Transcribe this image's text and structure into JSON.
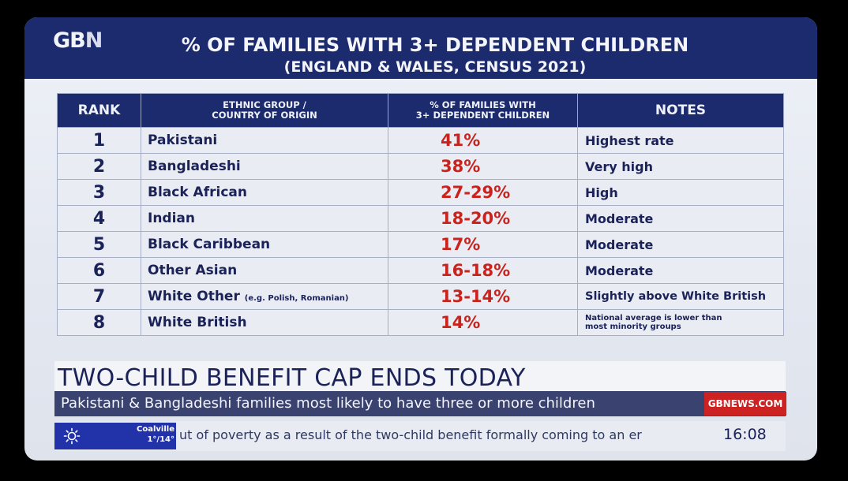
{
  "channel": {
    "logo_main": "GB",
    "logo_end": "N"
  },
  "graphic": {
    "title": "% OF FAMILIES WITH 3+ DEPENDENT CHILDREN",
    "subtitle": "(ENGLAND & WALES, CENSUS 2021)",
    "headers": {
      "rank": "RANK",
      "group_line1": "ETHNIC GROUP /",
      "group_line2": "COUNTRY OF ORIGIN",
      "pct_line1": "% OF FAMILIES WITH",
      "pct_line2": "3+ DEPENDENT CHILDREN",
      "notes": "NOTES"
    },
    "rows": [
      {
        "rank": "1",
        "group": "Pakistani",
        "group_note": "",
        "pct": "41%",
        "notes": "Highest rate",
        "notes_line2": ""
      },
      {
        "rank": "2",
        "group": "Bangladeshi",
        "group_note": "",
        "pct": "38%",
        "notes": "Very high",
        "notes_line2": ""
      },
      {
        "rank": "3",
        "group": "Black African",
        "group_note": "",
        "pct": "27-29%",
        "notes": "High",
        "notes_line2": ""
      },
      {
        "rank": "4",
        "group": "Indian",
        "group_note": "",
        "pct": "18-20%",
        "notes": "Moderate",
        "notes_line2": ""
      },
      {
        "rank": "5",
        "group": "Black Caribbean",
        "group_note": "",
        "pct": "17%",
        "notes": "Moderate",
        "notes_line2": ""
      },
      {
        "rank": "6",
        "group": "Other Asian",
        "group_note": "",
        "pct": "16-18%",
        "notes": "Moderate",
        "notes_line2": ""
      },
      {
        "rank": "7",
        "group": "White Other",
        "group_note": "(e.g. Polish, Romanian)",
        "pct": "13-14%",
        "notes": "Slightly above White British",
        "notes_line2": ""
      },
      {
        "rank": "8",
        "group": "White British",
        "group_note": "",
        "pct": "14%",
        "notes": "National average is lower than",
        "notes_line2": "most minority groups"
      }
    ]
  },
  "lower_third": {
    "headline": "TWO-CHILD BENEFIT CAP ENDS TODAY",
    "strap": "Pakistani & Bangladeshi families most likely to have three or more children",
    "website": "GBNEWS.COM"
  },
  "ticker": {
    "weather_location": "Coalville",
    "weather_temp": "1°/14°",
    "weather_icon": "sun-icon",
    "text": "ut of poverty as a result of the two-child benefit formally coming to an er",
    "clock": "16:08"
  },
  "colors": {
    "navy": "#1c2a6e",
    "percent_red": "#c8231d",
    "cell_bg": "#e9ecf3",
    "website_red": "#cc2222",
    "weather_blue": "#2233aa"
  }
}
